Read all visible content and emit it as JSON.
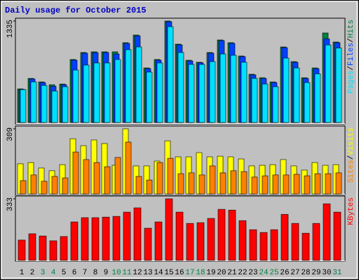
{
  "title": "Daily usage for October 2015",
  "category_colors": [
    "#000000",
    "#000000",
    "#008040",
    "#008040",
    "#000000",
    "#000000",
    "#000000",
    "#000000",
    "#000000",
    "#008040",
    "#008040",
    "#000000",
    "#000000",
    "#000000",
    "#000000",
    "#000000",
    "#008040",
    "#008040",
    "#000000",
    "#000000",
    "#000000",
    "#000000",
    "#000000",
    "#008040",
    "#008040",
    "#000000",
    "#000000",
    "#000000",
    "#000000",
    "#000000",
    "#008040"
  ],
  "chart_data": [
    {
      "type": "bar",
      "ylim": [
        0,
        1335
      ],
      "yticks": [
        1335
      ],
      "series": [
        {
          "name": "Hits",
          "color": "#008040",
          "values": [
            442,
            580,
            534,
            497,
            506,
            829,
            921,
            930,
            930,
            930,
            1050,
            1151,
            718,
            829,
            1335,
            1031,
            819,
            792,
            921,
            1086,
            1050,
            875,
            635,
            589,
            534,
            994,
            801,
            589,
            718,
            1178,
            1059
          ]
        },
        {
          "name": "Files",
          "color": "#0040FF",
          "values": [
            436,
            572,
            525,
            478,
            497,
            820,
            912,
            920,
            921,
            901,
            1040,
            1140,
            709,
            820,
            1326,
            1022,
            810,
            785,
            912,
            1077,
            1041,
            866,
            626,
            580,
            525,
            985,
            792,
            580,
            709,
            1100,
            1050
          ]
        },
        {
          "name": "Pages",
          "color": "#00E0FF",
          "values": [
            433,
            534,
            488,
            414,
            470,
            690,
            755,
            783,
            783,
            829,
            958,
            994,
            663,
            783,
            1261,
            921,
            764,
            764,
            801,
            902,
            884,
            792,
            580,
            506,
            470,
            847,
            718,
            525,
            640,
            1020,
            980
          ]
        }
      ]
    },
    {
      "type": "bar",
      "ylim": [
        0,
        309
      ],
      "yticks": [
        309
      ],
      "series": [
        {
          "name": "Visits",
          "color": "#FFFF00",
          "values": [
            143,
            149,
            123,
            110,
            139,
            262,
            229,
            256,
            239,
            136,
            309,
            133,
            133,
            156,
            252,
            176,
            176,
            196,
            176,
            179,
            176,
            166,
            133,
            136,
            139,
            163,
            133,
            113,
            149,
            136,
            139
          ]
        },
        {
          "name": "Sites",
          "color": "#FF8000",
          "values": [
            63,
            90,
            60,
            83,
            76,
            199,
            163,
            149,
            129,
            173,
            246,
            83,
            66,
            149,
            169,
            96,
            100,
            90,
            133,
            100,
            110,
            106,
            80,
            86,
            90,
            90,
            93,
            86,
            96,
            96,
            100
          ]
        }
      ]
    },
    {
      "type": "bar",
      "ylim": [
        0,
        333
      ],
      "yticks": [
        333
      ],
      "categories": [
        "1",
        "2",
        "3",
        "4",
        "5",
        "6",
        "7",
        "8",
        "9",
        "10",
        "11",
        "12",
        "13",
        "14",
        "15",
        "16",
        "17",
        "18",
        "19",
        "20",
        "21",
        "22",
        "23",
        "24",
        "25",
        "26",
        "27",
        "28",
        "29",
        "30",
        "31"
      ],
      "series": [
        {
          "name": "KBytes",
          "color": "#FF0000",
          "values": [
            110,
            144,
            132,
            106,
            129,
            208,
            231,
            231,
            234,
            238,
            261,
            284,
            174,
            208,
            333,
            261,
            200,
            204,
            227,
            276,
            272,
            215,
            166,
            151,
            166,
            249,
            200,
            147,
            200,
            306,
            261
          ]
        }
      ]
    }
  ]
}
